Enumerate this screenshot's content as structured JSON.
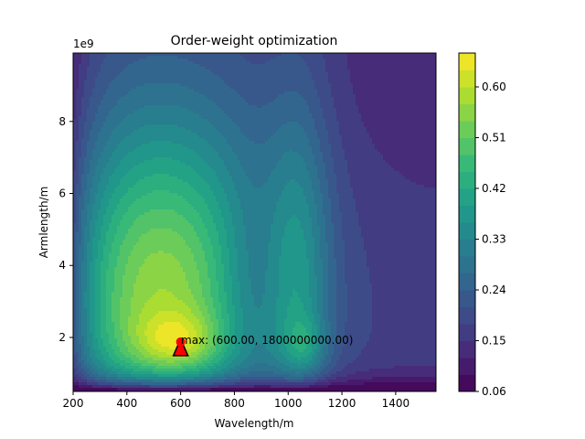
{
  "chart_data": {
    "type": "contour",
    "title": "Order-weight optimization",
    "xlabel": "Wavelength/m",
    "ylabel": "Armlength/m",
    "y_offset_label": "1e9",
    "xlim": [
      200,
      1550
    ],
    "ylim": [
      500000000,
      9900000000
    ],
    "x_ticks": [
      200,
      400,
      600,
      800,
      1000,
      1200,
      1400
    ],
    "x_tick_labels": [
      "200",
      "400",
      "600",
      "800",
      "1000",
      "1200",
      "1400"
    ],
    "y_ticks": [
      2000000000,
      4000000000,
      6000000000,
      8000000000
    ],
    "y_tick_labels": [
      "2",
      "4",
      "6",
      "8"
    ],
    "colorbar": {
      "colormap": "viridis",
      "min": 0.06,
      "max": 0.66,
      "ticks": [
        0.06,
        0.15,
        0.24,
        0.33,
        0.42,
        0.51,
        0.6
      ],
      "tick_labels": [
        "0.06",
        "0.15",
        "0.24",
        "0.33",
        "0.42",
        "0.51",
        "0.60"
      ]
    },
    "max_point": {
      "x": 600,
      "y": 1800000000,
      "label": "max: (600.00, 1800000000.00)",
      "marker_color": "#ff0000",
      "triangle_color": "#ff0000"
    }
  }
}
